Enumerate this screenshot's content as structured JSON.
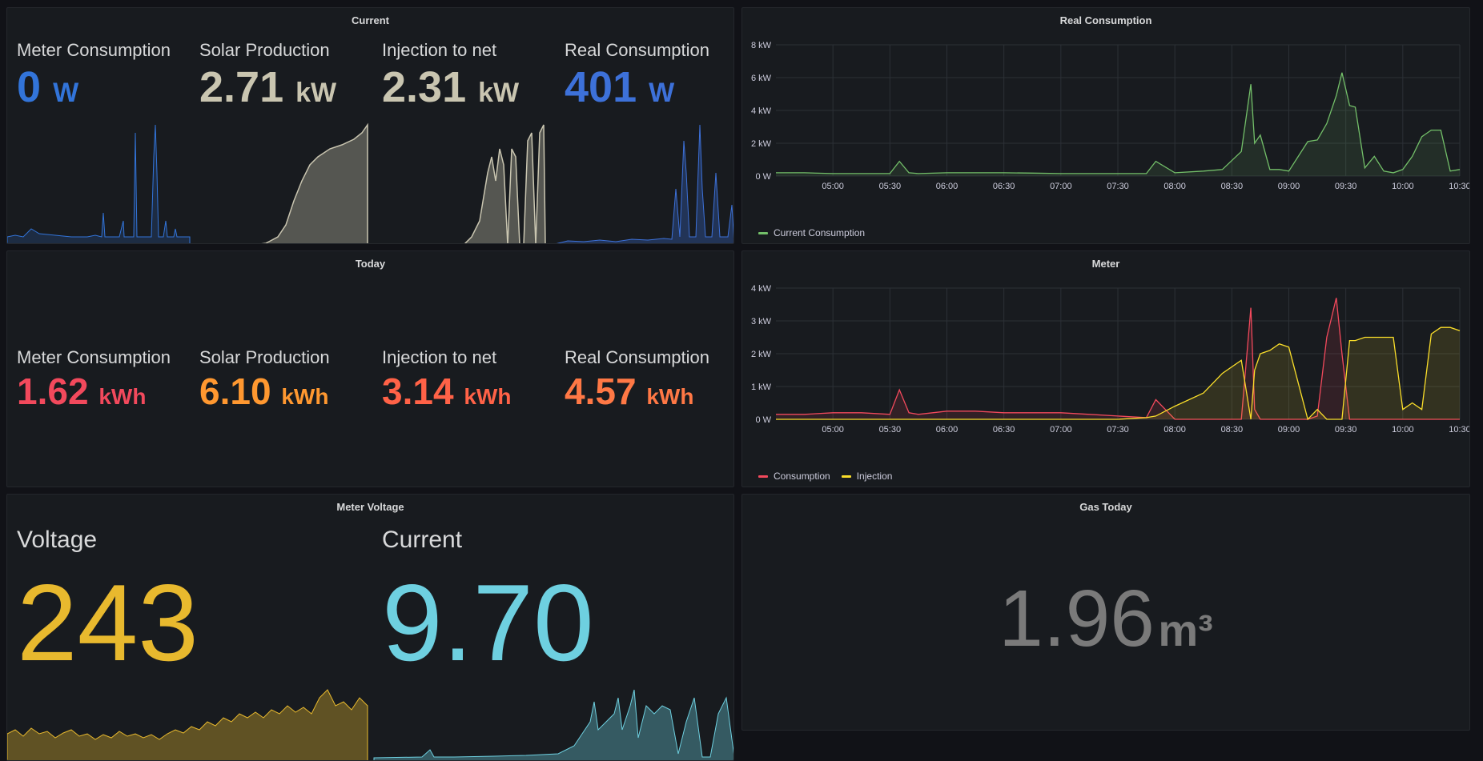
{
  "panels": {
    "current": {
      "title": "Current",
      "stats": [
        {
          "label": "Meter Consumption",
          "value": "0",
          "unit": "W",
          "color": "#3274d9"
        },
        {
          "label": "Solar Production",
          "value": "2.71",
          "unit": "kW",
          "color": "#c9c5b0"
        },
        {
          "label": "Injection to net",
          "value": "2.31",
          "unit": "kW",
          "color": "#c9c5b0"
        },
        {
          "label": "Real Consumption",
          "value": "401",
          "unit": "W",
          "color": "#3d71d9"
        }
      ]
    },
    "today": {
      "title": "Today",
      "stats": [
        {
          "label": "Meter Consumption",
          "value": "1.62",
          "unit": "kWh",
          "color": "#f2495c"
        },
        {
          "label": "Solar Production",
          "value": "6.10",
          "unit": "kWh",
          "color": "#ff9830"
        },
        {
          "label": "Injection to net",
          "value": "3.14",
          "unit": "kWh",
          "color": "#ff6247"
        },
        {
          "label": "Real Consumption",
          "value": "4.57",
          "unit": "kWh",
          "color": "#ff7845"
        }
      ]
    },
    "voltage": {
      "title": "Meter Voltage",
      "stats": [
        {
          "label": "Voltage",
          "value": "243",
          "unit": "",
          "color": "#e8b92e"
        },
        {
          "label": "Current",
          "value": "9.70",
          "unit": "",
          "color": "#6ed0e0"
        }
      ]
    },
    "gas": {
      "title": "Gas Today",
      "value": "1.96",
      "unit": "m³",
      "color": "#7a7a7a"
    },
    "real_consumption": {
      "title": "Real Consumption",
      "legend": [
        {
          "label": "Current Consumption",
          "color": "#73bf69"
        }
      ]
    },
    "meter": {
      "title": "Meter",
      "legend": [
        {
          "label": "Consumption",
          "color": "#f2495c"
        },
        {
          "label": "Injection",
          "color": "#fade2a"
        }
      ]
    }
  },
  "chart_data": [
    {
      "type": "area",
      "title": "Real Consumption",
      "x": [
        "04:30",
        "04:45",
        "05:00",
        "05:15",
        "05:30",
        "05:35",
        "05:40",
        "05:45",
        "06:00",
        "06:15",
        "06:30",
        "06:45",
        "07:00",
        "07:15",
        "07:30",
        "07:45",
        "07:50",
        "08:00",
        "08:15",
        "08:25",
        "08:35",
        "08:40",
        "08:42",
        "08:45",
        "08:50",
        "08:55",
        "09:00",
        "09:10",
        "09:15",
        "09:20",
        "09:25",
        "09:28",
        "09:32",
        "09:35",
        "09:40",
        "09:45",
        "09:50",
        "09:55",
        "10:00",
        "10:05",
        "10:10",
        "10:15",
        "10:20",
        "10:25",
        "10:30"
      ],
      "series": [
        {
          "name": "Current Consumption",
          "color": "#73bf69",
          "values": [
            0.2,
            0.2,
            0.15,
            0.15,
            0.15,
            0.9,
            0.2,
            0.15,
            0.2,
            0.2,
            0.2,
            0.18,
            0.15,
            0.15,
            0.15,
            0.15,
            0.9,
            0.2,
            0.3,
            0.4,
            1.5,
            5.6,
            2.0,
            2.5,
            0.4,
            0.4,
            0.3,
            2.1,
            2.2,
            3.2,
            4.9,
            6.3,
            4.3,
            4.2,
            0.5,
            1.2,
            0.3,
            0.2,
            0.4,
            1.2,
            2.4,
            2.8,
            2.8,
            0.3,
            0.4
          ]
        }
      ],
      "xticks": [
        "05:00",
        "05:30",
        "06:00",
        "06:30",
        "07:00",
        "07:30",
        "08:00",
        "08:30",
        "09:00",
        "09:30",
        "10:00",
        "10:30"
      ],
      "yticks": [
        "0 W",
        "2 kW",
        "4 kW",
        "6 kW",
        "8 kW"
      ],
      "ylim": [
        0,
        8
      ],
      "ylabel": "",
      "grid": true,
      "legend": "bottom-left"
    },
    {
      "type": "area",
      "title": "Meter",
      "x": [
        "04:30",
        "04:45",
        "05:00",
        "05:15",
        "05:30",
        "05:35",
        "05:40",
        "05:45",
        "06:00",
        "06:15",
        "06:30",
        "06:45",
        "07:00",
        "07:15",
        "07:30",
        "07:45",
        "07:50",
        "08:00",
        "08:15",
        "08:25",
        "08:35",
        "08:40",
        "08:42",
        "08:45",
        "08:50",
        "08:55",
        "09:00",
        "09:10",
        "09:15",
        "09:20",
        "09:25",
        "09:28",
        "09:32",
        "09:35",
        "09:40",
        "09:45",
        "09:50",
        "09:55",
        "10:00",
        "10:05",
        "10:10",
        "10:15",
        "10:20",
        "10:25",
        "10:30"
      ],
      "series": [
        {
          "name": "Consumption",
          "color": "#f2495c",
          "values": [
            0.15,
            0.15,
            0.2,
            0.2,
            0.15,
            0.9,
            0.2,
            0.15,
            0.25,
            0.25,
            0.2,
            0.2,
            0.2,
            0.15,
            0.1,
            0.05,
            0.6,
            0,
            0,
            0,
            0,
            3.4,
            0.3,
            0,
            0,
            0,
            0,
            0,
            0.1,
            2.5,
            3.7,
            2.0,
            0,
            0,
            0,
            0,
            0,
            0,
            0,
            0,
            0,
            0,
            0,
            0,
            0
          ]
        },
        {
          "name": "Injection",
          "color": "#fade2a",
          "values": [
            0,
            0,
            0,
            0,
            0,
            0,
            0,
            0,
            0,
            0,
            0,
            0,
            0,
            0,
            0,
            0.05,
            0.1,
            0.4,
            0.8,
            1.4,
            1.8,
            0,
            1.5,
            2.0,
            2.1,
            2.3,
            2.2,
            0,
            0.3,
            0,
            0,
            0,
            2.4,
            2.4,
            2.5,
            2.5,
            2.5,
            2.5,
            0.3,
            0.5,
            0.3,
            2.6,
            2.8,
            2.8,
            2.7
          ]
        }
      ],
      "xticks": [
        "05:00",
        "05:30",
        "06:00",
        "06:30",
        "07:00",
        "07:30",
        "08:00",
        "08:30",
        "09:00",
        "09:30",
        "10:00",
        "10:30"
      ],
      "yticks": [
        "0 W",
        "1 kW",
        "2 kW",
        "3 kW",
        "4 kW"
      ],
      "ylim": [
        0,
        4
      ],
      "ylabel": "",
      "grid": true,
      "legend": "bottom-left"
    }
  ]
}
